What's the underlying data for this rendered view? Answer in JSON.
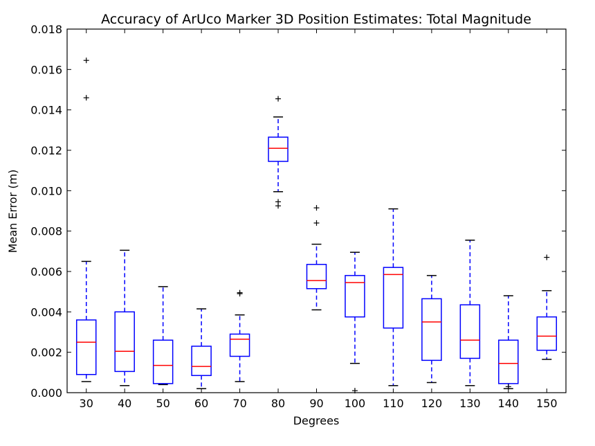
{
  "chart_data": {
    "type": "boxplot",
    "title": "Accuracy of ArUco Marker 3D Position Estimates: Total Magnitude",
    "xlabel": "Degrees",
    "ylabel": "Mean Error (m)",
    "ylim": [
      0,
      0.018
    ],
    "yticks": [
      "0.000",
      "0.002",
      "0.004",
      "0.006",
      "0.008",
      "0.010",
      "0.012",
      "0.014",
      "0.016",
      "0.018"
    ],
    "categories": [
      "30",
      "40",
      "50",
      "60",
      "70",
      "80",
      "90",
      "100",
      "110",
      "120",
      "130",
      "140",
      "150"
    ],
    "grid": false,
    "box_color": "#0000ff",
    "median_color": "#ff0000",
    "boxes": [
      {
        "label": "30",
        "whislo": 0.00055,
        "q1": 0.0009,
        "med": 0.0025,
        "q3": 0.0036,
        "whishi": 0.0065,
        "fliers": [
          0.0146,
          0.01645
        ]
      },
      {
        "label": "40",
        "whislo": 0.00035,
        "q1": 0.00105,
        "med": 0.00205,
        "q3": 0.004,
        "whishi": 0.00705,
        "fliers": []
      },
      {
        "label": "50",
        "whislo": 0.0004,
        "q1": 0.00045,
        "med": 0.00135,
        "q3": 0.0026,
        "whishi": 0.00525,
        "fliers": []
      },
      {
        "label": "60",
        "whislo": 0.0002,
        "q1": 0.00085,
        "med": 0.0013,
        "q3": 0.0023,
        "whishi": 0.00415,
        "fliers": []
      },
      {
        "label": "70",
        "whislo": 0.00055,
        "q1": 0.0018,
        "med": 0.00265,
        "q3": 0.0029,
        "whishi": 0.00385,
        "fliers": [
          0.0049,
          0.00495
        ]
      },
      {
        "label": "80",
        "whislo": 0.00995,
        "q1": 0.01145,
        "med": 0.0121,
        "q3": 0.01265,
        "whishi": 0.01365,
        "fliers": [
          0.00925,
          0.00945,
          0.01455
        ]
      },
      {
        "label": "90",
        "whislo": 0.0041,
        "q1": 0.00515,
        "med": 0.00555,
        "q3": 0.00635,
        "whishi": 0.00735,
        "fliers": [
          0.0084,
          0.00915
        ]
      },
      {
        "label": "100",
        "whislo": 0.00145,
        "q1": 0.00375,
        "med": 0.00545,
        "q3": 0.0058,
        "whishi": 0.00695,
        "fliers": [
          0.0001
        ]
      },
      {
        "label": "110",
        "whislo": 0.00035,
        "q1": 0.0032,
        "med": 0.00585,
        "q3": 0.0062,
        "whishi": 0.0091,
        "fliers": []
      },
      {
        "label": "120",
        "whislo": 0.0005,
        "q1": 0.0016,
        "med": 0.0035,
        "q3": 0.00465,
        "whishi": 0.0058,
        "fliers": []
      },
      {
        "label": "130",
        "whislo": 0.00035,
        "q1": 0.0017,
        "med": 0.0026,
        "q3": 0.00435,
        "whishi": 0.00755,
        "fliers": []
      },
      {
        "label": "140",
        "whislo": 0.0002,
        "q1": 0.00045,
        "med": 0.00145,
        "q3": 0.0026,
        "whishi": 0.0048,
        "fliers": [
          0.0003
        ]
      },
      {
        "label": "150",
        "whislo": 0.00165,
        "q1": 0.0021,
        "med": 0.0028,
        "q3": 0.00375,
        "whishi": 0.00505,
        "fliers": [
          0.0067
        ]
      }
    ]
  }
}
